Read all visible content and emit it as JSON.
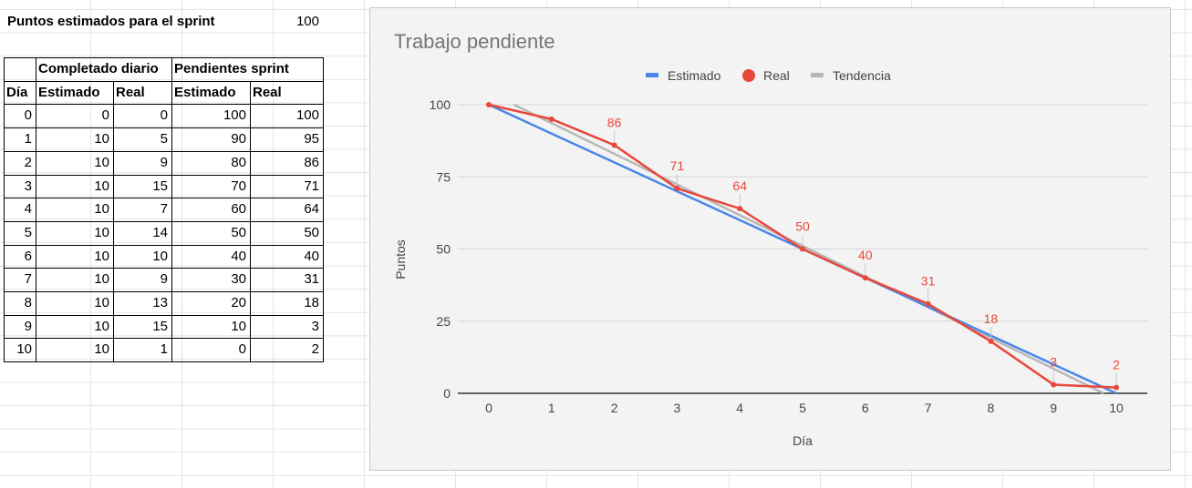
{
  "sheet": {
    "sprint_points_label": "Puntos estimados para el sprint",
    "sprint_points_value": "100",
    "group_headers": {
      "completed": "Completado diario",
      "remaining": "Pendientes sprint"
    },
    "col_headers": [
      "Día",
      "Estimado",
      "Real",
      "Estimado",
      "Real"
    ],
    "rows": [
      [
        0,
        0,
        0,
        100,
        100
      ],
      [
        1,
        10,
        5,
        90,
        95
      ],
      [
        2,
        10,
        9,
        80,
        86
      ],
      [
        3,
        10,
        15,
        70,
        71
      ],
      [
        4,
        10,
        7,
        60,
        64
      ],
      [
        5,
        10,
        14,
        50,
        50
      ],
      [
        6,
        10,
        10,
        40,
        40
      ],
      [
        7,
        10,
        9,
        30,
        31
      ],
      [
        8,
        10,
        13,
        20,
        18
      ],
      [
        9,
        10,
        15,
        10,
        3
      ],
      [
        10,
        10,
        1,
        0,
        2
      ]
    ]
  },
  "chart_data": {
    "type": "line",
    "title": "Trabajo pendiente",
    "xlabel": "Día",
    "ylabel": "Puntos",
    "x": [
      0,
      1,
      2,
      3,
      4,
      5,
      6,
      7,
      8,
      9,
      10
    ],
    "yticks": [
      0,
      25,
      50,
      75,
      100
    ],
    "ylim": [
      0,
      100
    ],
    "xlim": [
      0,
      10
    ],
    "grid": true,
    "legend_position": "top",
    "series": [
      {
        "name": "Estimado",
        "color": "#4a86e8",
        "values": [
          100,
          90,
          80,
          70,
          60,
          50,
          40,
          30,
          20,
          10,
          0
        ]
      },
      {
        "name": "Real",
        "color": "#e8473b",
        "values": [
          100,
          95,
          86,
          71,
          64,
          50,
          40,
          31,
          18,
          3,
          2
        ],
        "data_labels": [
          {
            "x": 2,
            "text": "86"
          },
          {
            "x": 3,
            "text": "71"
          },
          {
            "x": 4,
            "text": "64"
          },
          {
            "x": 5,
            "text": "50"
          },
          {
            "x": 6,
            "text": "40"
          },
          {
            "x": 7,
            "text": "31"
          },
          {
            "x": 8,
            "text": "18"
          },
          {
            "x": 9,
            "text": "3"
          },
          {
            "x": 10,
            "text": "2"
          }
        ]
      },
      {
        "name": "Tendencia",
        "color": "#b7b7b7",
        "trendline": true,
        "from": [
          0.4,
          100
        ],
        "to": [
          9.8,
          0
        ]
      }
    ]
  }
}
